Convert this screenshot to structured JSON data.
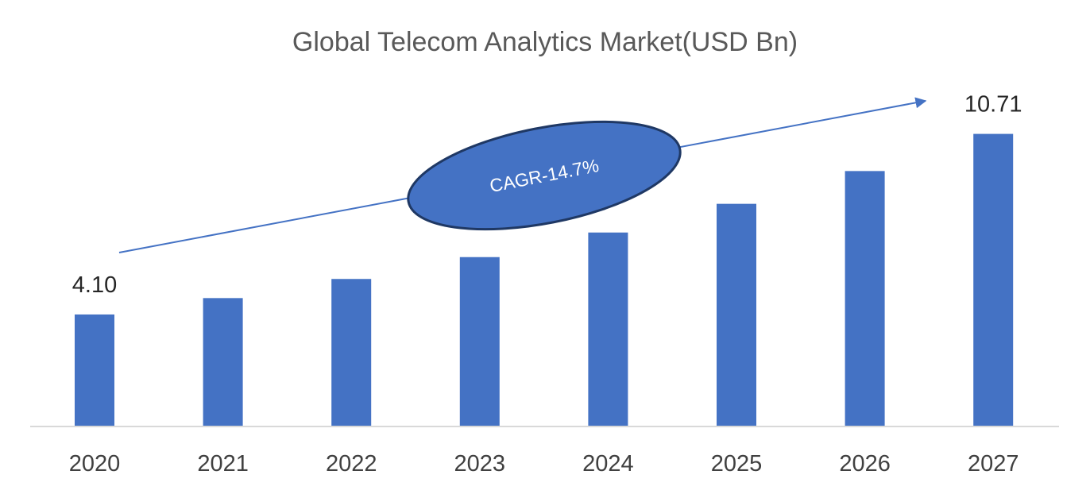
{
  "chart_data": {
    "type": "bar",
    "title": "Global Telecom Analytics Market(USD Bn)",
    "categories": [
      "2020",
      "2021",
      "2022",
      "2023",
      "2024",
      "2025",
      "2026",
      "2027"
    ],
    "values": [
      4.1,
      4.7,
      5.4,
      6.2,
      7.1,
      8.15,
      9.35,
      10.71
    ],
    "data_labels": [
      "4.10",
      "",
      "",
      "",
      "",
      "",
      "",
      "10.71"
    ],
    "ylim": [
      0,
      12
    ],
    "grid": false,
    "legend": "none",
    "bar_color": "#4472C4",
    "annotation": {
      "text": "CAGR-14.7%",
      "shape": "ellipse",
      "fill": "#4472C4",
      "stroke": "#1F3864",
      "text_color": "#FFFFFF",
      "arrow": "trend arrow from first bar to last bar"
    }
  }
}
